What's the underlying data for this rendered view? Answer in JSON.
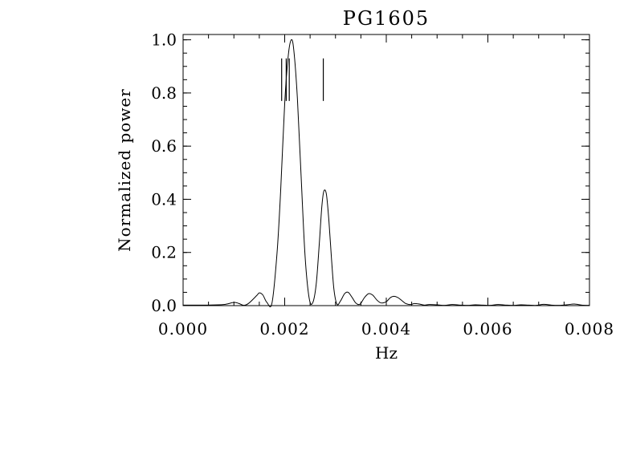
{
  "chart_data": {
    "type": "line",
    "title": "PG1605",
    "xlabel": "Hz",
    "ylabel": "Normalized power",
    "xlim": [
      0.0,
      0.008
    ],
    "ylim": [
      0.0,
      1.02
    ],
    "x_ticks": [
      {
        "value": 0.0,
        "label": "0.000"
      },
      {
        "value": 0.002,
        "label": "0.002"
      },
      {
        "value": 0.004,
        "label": "0.004"
      },
      {
        "value": 0.006,
        "label": "0.006"
      },
      {
        "value": 0.008,
        "label": "0.008"
      }
    ],
    "y_ticks": [
      {
        "value": 0.0,
        "label": "0.0"
      },
      {
        "value": 0.2,
        "label": "0.2"
      },
      {
        "value": 0.4,
        "label": "0.4"
      },
      {
        "value": 0.6,
        "label": "0.6"
      },
      {
        "value": 0.8,
        "label": "0.8"
      },
      {
        "value": 1.0,
        "label": "1.0"
      }
    ],
    "series": [
      {
        "x": [
          0.0,
          0.0005,
          0.0008,
          0.001,
          0.0011,
          0.0012,
          0.0013,
          0.00145,
          0.0015,
          0.00157,
          0.00165,
          0.00175,
          0.00185,
          0.00192,
          0.002,
          0.00207,
          0.00213,
          0.00218,
          0.00225,
          0.00232,
          0.0024,
          0.00248,
          0.00255,
          0.00262,
          0.00268,
          0.00273,
          0.00277,
          0.00282,
          0.00287,
          0.00292,
          0.00297,
          0.00303,
          0.0031,
          0.00318,
          0.00325,
          0.00333,
          0.0034,
          0.00348,
          0.00357,
          0.00365,
          0.00373,
          0.00382,
          0.0039,
          0.004,
          0.00408,
          0.00415,
          0.00423,
          0.0043,
          0.00438,
          0.00448,
          0.00455,
          0.00465,
          0.00475,
          0.00485,
          0.005,
          0.00515,
          0.0053,
          0.00545,
          0.0056,
          0.00575,
          0.0059,
          0.00605,
          0.0062,
          0.00635,
          0.0065,
          0.00665,
          0.0068,
          0.00695,
          0.0071,
          0.00725,
          0.0074,
          0.00755,
          0.0077,
          0.00785,
          0.008
        ],
        "y": [
          0.002,
          0.002,
          0.004,
          0.012,
          0.008,
          0.001,
          0.01,
          0.038,
          0.048,
          0.04,
          0.012,
          0.01,
          0.2,
          0.43,
          0.76,
          0.94,
          1.0,
          0.96,
          0.78,
          0.5,
          0.19,
          0.03,
          0.01,
          0.08,
          0.23,
          0.37,
          0.43,
          0.42,
          0.32,
          0.18,
          0.06,
          0.005,
          0.018,
          0.045,
          0.05,
          0.03,
          0.01,
          0.005,
          0.03,
          0.045,
          0.04,
          0.02,
          0.01,
          0.015,
          0.03,
          0.035,
          0.03,
          0.02,
          0.008,
          0.004,
          0.008,
          0.006,
          0.002,
          0.004,
          0.003,
          0.001,
          0.004,
          0.002,
          0.001,
          0.003,
          0.002,
          0.001,
          0.004,
          0.002,
          0.001,
          0.003,
          0.002,
          0.001,
          0.005,
          0.002,
          0.001,
          0.003,
          0.006,
          0.002,
          0.001
        ]
      }
    ],
    "markers": {
      "x": [
        0.00194,
        0.00203,
        0.00209,
        0.00276
      ],
      "y_from": 0.77,
      "y_to": 0.93
    },
    "grid": false,
    "legend": "none"
  }
}
